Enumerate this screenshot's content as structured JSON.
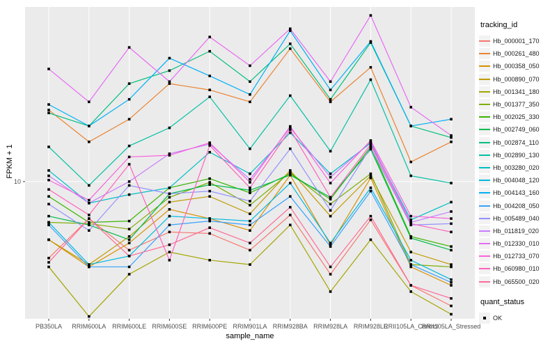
{
  "chart_data": {
    "type": "line",
    "xlabel": "sample_name",
    "ylabel": "FPKM + 1",
    "y_scale": "log10",
    "ylim": [
      1.6,
      103
    ],
    "y_ticks": [
      10
    ],
    "y_tick_labels": [
      "10"
    ],
    "grid": "vertical-category-lines and major y gridline, white on grey panel",
    "panel_bg": "#EBEBEB",
    "grid_color": "#FFFFFF",
    "tick_text_color": "#4D4D4D",
    "point_color": "#000000",
    "point_shape": "square",
    "legend_title": "tracking_id",
    "marker_legend_title": "quant_status",
    "marker_legend_label": "OK",
    "legend_position": "right",
    "categories": [
      "PB350LA",
      "RRIM600LA",
      "RRIM600LE",
      "RRIM600SE",
      "RRIM600PE",
      "RRIM901LA",
      "RRIM928BA",
      "RRIM928LA",
      "RRIM928LE",
      "RRII105LA_Control",
      "RRII105LA_Stressed"
    ],
    "series": [
      {
        "name": "Hb_000001_170",
        "color": "#F8766D",
        "values": [
          3.6,
          6.1,
          4.0,
          5.1,
          5.0,
          4.0,
          6.4,
          2.9,
          6.0,
          2.5,
          1.9
        ]
      },
      {
        "name": "Hb_000261_480",
        "color": "#EA8331",
        "values": [
          26,
          17,
          23,
          37,
          34,
          29,
          59,
          29,
          46,
          13,
          17
        ]
      },
      {
        "name": "Hb_000358_050",
        "color": "#D89000",
        "values": [
          4.6,
          3.2,
          4.4,
          6.9,
          6.1,
          5.2,
          10.9,
          4.3,
          10.5,
          3.2,
          2.5
        ]
      },
      {
        "name": "Hb_000890_070",
        "color": "#C09B00",
        "values": [
          4.6,
          3.3,
          4.8,
          7.6,
          8.2,
          6.5,
          11.6,
          6.3,
          10.8,
          3.9,
          3.3
        ]
      },
      {
        "name": "Hb_001341_180",
        "color": "#A3A500",
        "values": [
          3.2,
          1.65,
          2.9,
          3.9,
          3.5,
          3.3,
          5.6,
          2.3,
          4.6,
          2.3,
          1.7
        ]
      },
      {
        "name": "Hb_001377_350",
        "color": "#7CAE00",
        "values": [
          5.8,
          5.7,
          5.3,
          8.1,
          9.9,
          7.3,
          11.3,
          7.4,
          11.1,
          3.3,
          3.2
        ]
      },
      {
        "name": "Hb_002025_330",
        "color": "#39B600",
        "values": [
          8.2,
          5.8,
          5.9,
          9.2,
          10.4,
          8.6,
          11.1,
          7.9,
          15.9,
          4.8,
          4.2
        ]
      },
      {
        "name": "Hb_002749_060",
        "color": "#00BB4E",
        "values": [
          6.3,
          5.6,
          4.6,
          8.5,
          9.6,
          8.9,
          10.9,
          8.1,
          15.4,
          4.7,
          4.0
        ]
      },
      {
        "name": "Hb_002874_110",
        "color": "#00BF7D",
        "values": [
          25,
          21,
          37,
          44,
          57,
          38,
          63,
          30,
          64,
          21,
          18
        ]
      },
      {
        "name": "Hb_002890_130",
        "color": "#00C1A3",
        "values": [
          15.9,
          9.5,
          16.1,
          20.5,
          31,
          15.5,
          31.5,
          15,
          39,
          10.8,
          9.8
        ]
      },
      {
        "name": "Hb_003280_020",
        "color": "#00BFC4",
        "values": [
          11.6,
          7.5,
          8.4,
          9.2,
          14.8,
          11.1,
          19.2,
          11.1,
          16.7,
          6.0,
          7.6
        ]
      },
      {
        "name": "Hb_004048_120",
        "color": "#00BAE0",
        "values": [
          5.8,
          3.3,
          3.7,
          6.3,
          6.1,
          5.9,
          9.8,
          4.4,
          9.2,
          3.5,
          2.7
        ]
      },
      {
        "name": "Hb_004143_160",
        "color": "#00B0F6",
        "values": [
          28,
          21,
          30,
          52,
          41,
          32,
          75,
          34,
          65,
          21,
          23
        ]
      },
      {
        "name": "Hb_004208_050",
        "color": "#35A2FF",
        "values": [
          5.6,
          3.2,
          3.2,
          5.6,
          5.9,
          5.6,
          8.2,
          4.2,
          8.8,
          3.3,
          2.6
        ]
      },
      {
        "name": "Hb_005489_040",
        "color": "#9590FF",
        "values": [
          7.4,
          5.2,
          9.5,
          8.5,
          8.8,
          7.7,
          15.5,
          6.8,
          15.8,
          5.6,
          5.7
        ]
      },
      {
        "name": "Hb_011819_020",
        "color": "#C77CFF",
        "values": [
          10.8,
          7.5,
          10.0,
          14.5,
          16.5,
          10.3,
          20.5,
          10.6,
          17.0,
          5.8,
          6.7
        ]
      },
      {
        "name": "Hb_012330_010",
        "color": "#E76BF3",
        "values": [
          45,
          29,
          60,
          38,
          69,
          47,
          77,
          38,
          92,
          27,
          18.5
        ]
      },
      {
        "name": "Hb_012733_070",
        "color": "#FA62DB",
        "values": [
          10.2,
          7.8,
          13.9,
          14.2,
          16.8,
          9.9,
          20.9,
          9.8,
          17.3,
          6.3,
          6.1
        ]
      },
      {
        "name": "Hb_060980_010",
        "color": "#FF62BC",
        "values": [
          9.0,
          6.4,
          12.6,
          3.5,
          16.2,
          9.2,
          20.0,
          8.1,
          16.4,
          5.7,
          5.1
        ]
      },
      {
        "name": "Hb_065500_020",
        "color": "#FF6A98",
        "values": [
          3.4,
          6.1,
          3.7,
          4.3,
          5.4,
          4.4,
          7.1,
          3.2,
          6.3,
          2.5,
          2.1
        ]
      }
    ]
  }
}
